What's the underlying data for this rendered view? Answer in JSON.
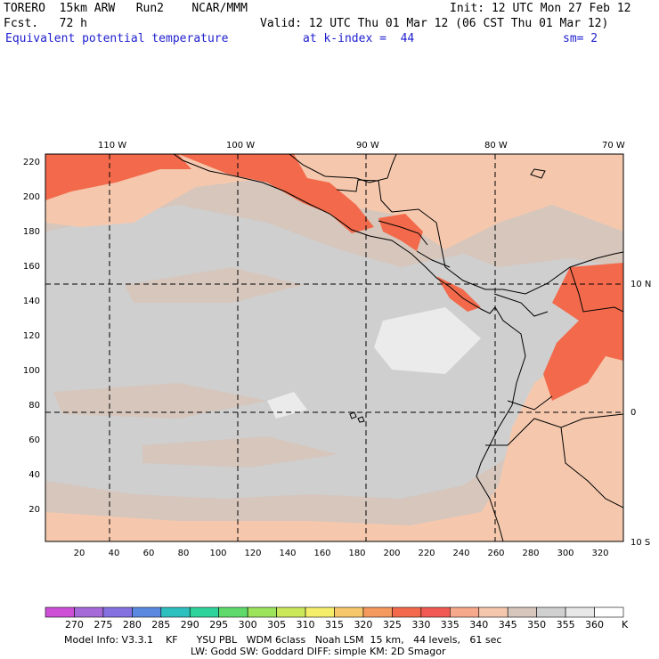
{
  "header": {
    "model": "TORERO  15km ARW   Run2    NCAR/MMM",
    "init": "Init: 12 UTC Mon 27 Feb 12",
    "fcst": "Fcst.   72 h",
    "valid": "Valid: 12 UTC Thu 01 Mar 12 (06 CST Thu 01 Mar 12)",
    "field": "Equivalent potential temperature",
    "level": "at k-index =  44",
    "sm": "sm= 2"
  },
  "map": {
    "top_lon_labels": [
      "110 W",
      "100 W",
      "90 W",
      "80 W",
      "70 W"
    ],
    "right_lat_labels": [
      "10 N",
      "0",
      "10 S"
    ],
    "y_ticks": [
      "220",
      "200",
      "180",
      "160",
      "140",
      "120",
      "100",
      "80",
      "60",
      "40",
      "20"
    ],
    "x_ticks": [
      "20",
      "40",
      "60",
      "80",
      "100",
      "120",
      "140",
      "160",
      "180",
      "200",
      "220",
      "240",
      "260",
      "280",
      "300",
      "320"
    ]
  },
  "colorbar": {
    "unit": "K",
    "labels": [
      "270",
      "275",
      "280",
      "285",
      "290",
      "295",
      "300",
      "305",
      "310",
      "315",
      "320",
      "325",
      "330",
      "335",
      "340",
      "345",
      "350",
      "355",
      "360"
    ],
    "colors": [
      "#cc4fd6",
      "#a56ad8",
      "#8571e0",
      "#5b89e0",
      "#2ebfbf",
      "#2ed39c",
      "#5fd96a",
      "#9be45c",
      "#cbe85a",
      "#f5ee6a",
      "#f7c86b",
      "#f59a5e",
      "#f26a4b",
      "#f05a52",
      "#f7a98c",
      "#f5c8ae",
      "#d6c6bc",
      "#d0d0d0",
      "#e8e8e8",
      "#ffffff"
    ]
  },
  "footer": {
    "line1": "Model Info: V3.3.1    KF      YSU PBL   WDM 6class   Noah LSM  15 km,   44 levels,   61 sec",
    "line2": "LW: Godd SW: Goddard DIFF: simple KM: 2D Smagor"
  }
}
